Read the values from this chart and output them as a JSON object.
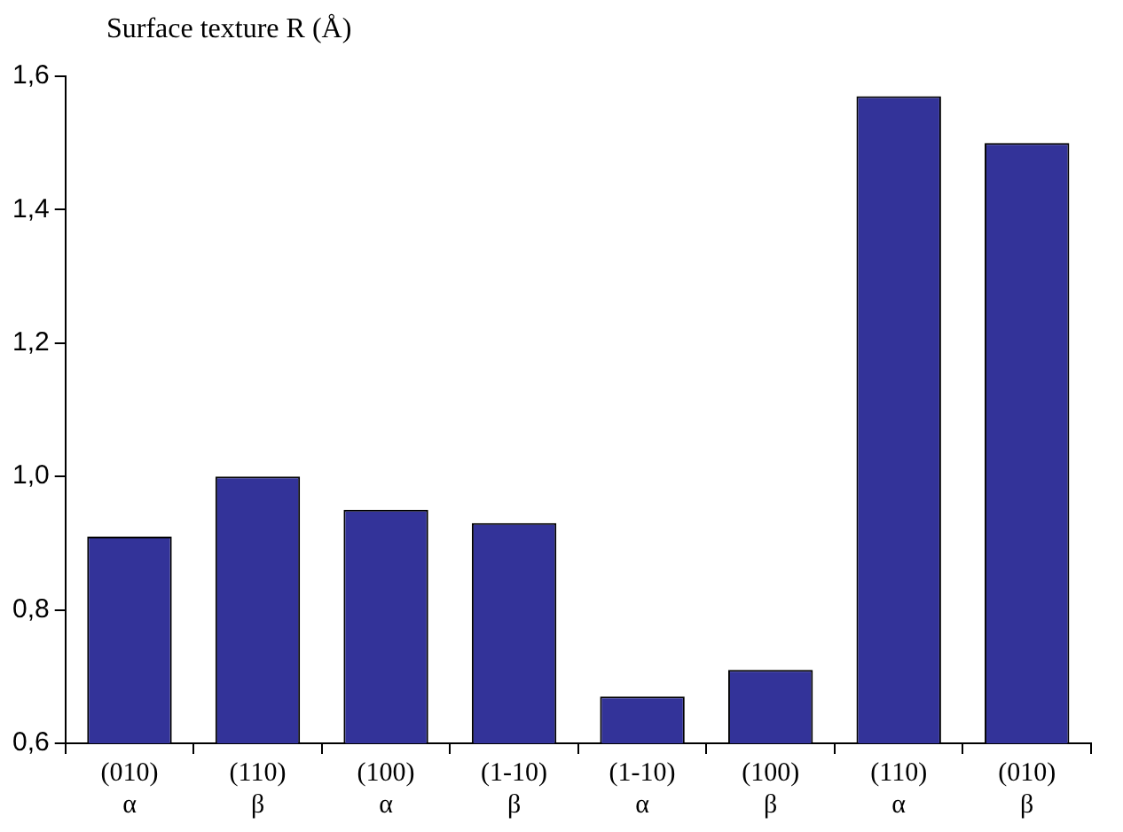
{
  "chart_data": {
    "type": "bar",
    "ylabel": "Surface texture R (Å)",
    "categories": [
      "(010)\nα",
      "(110)\nβ",
      "(100)\nα",
      "(1-10)\nβ",
      "(1-10)\nα",
      "(100)\nβ",
      "(110)\nα",
      "(010)\nβ"
    ],
    "values": [
      0.91,
      1.0,
      0.95,
      0.93,
      0.67,
      0.71,
      1.57,
      1.5
    ],
    "color": "#333399",
    "ylim": [
      0.6,
      1.6
    ],
    "yticks": [
      {
        "value": 0.6,
        "label": "0,6"
      },
      {
        "value": 0.8,
        "label": "0,8"
      },
      {
        "value": 1.0,
        "label": "1,0"
      },
      {
        "value": 1.2,
        "label": "1,2"
      },
      {
        "value": 1.4,
        "label": "1,4"
      },
      {
        "value": 1.6,
        "label": "1,6"
      }
    ],
    "grid": false,
    "legend": false
  }
}
